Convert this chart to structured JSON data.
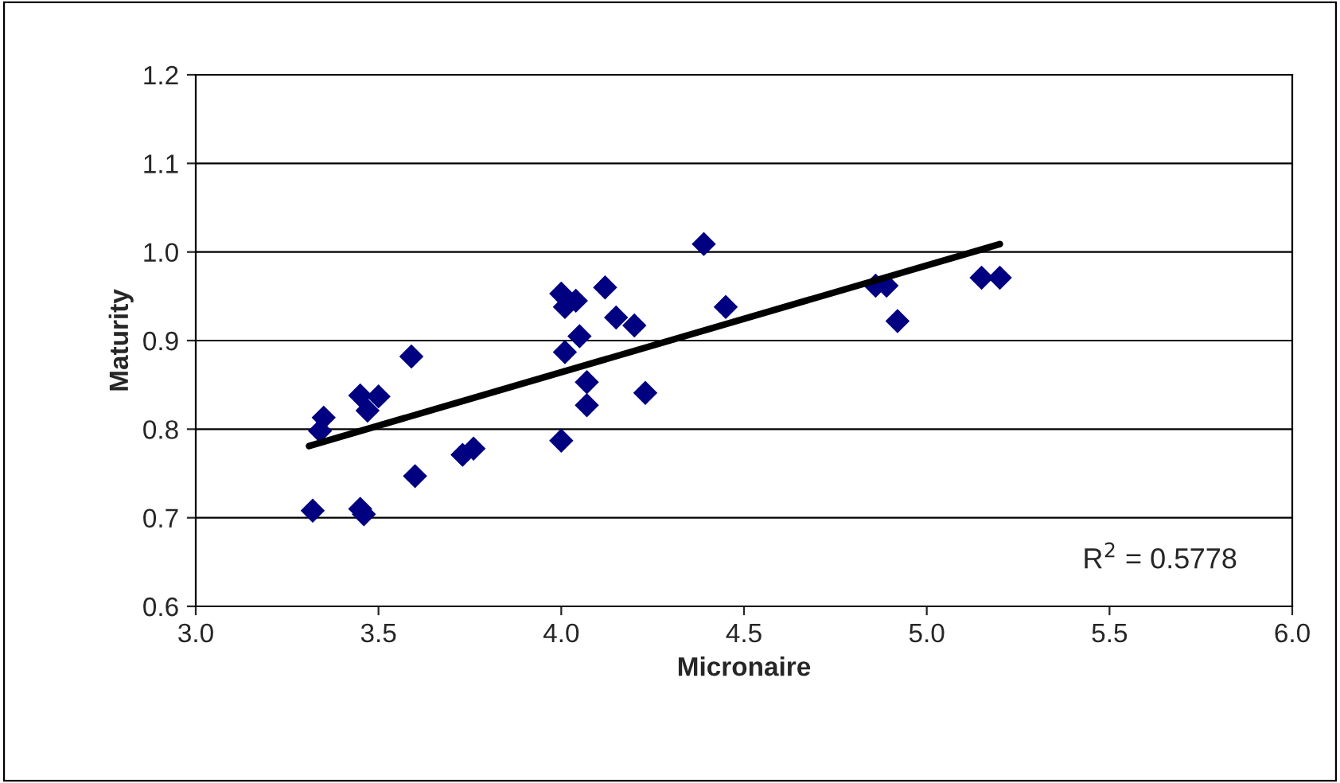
{
  "chart_data": {
    "type": "scatter",
    "xlabel": "Micronaire",
    "ylabel": "Maturity",
    "xlim": [
      3.0,
      6.0
    ],
    "xticks": [
      {
        "value": 3.0,
        "label": "3.0"
      },
      {
        "value": 3.5,
        "label": "3.5"
      },
      {
        "value": 4.0,
        "label": "4.0"
      },
      {
        "value": 4.5,
        "label": "4.5"
      },
      {
        "value": 5.0,
        "label": "5.0"
      },
      {
        "value": 5.5,
        "label": "5.5"
      },
      {
        "value": 6.0,
        "label": "6.0"
      }
    ],
    "ylim": [
      0.6,
      1.2
    ],
    "yticks": [
      {
        "value": 0.6,
        "label": "0.6"
      },
      {
        "value": 0.7,
        "label": "0.7"
      },
      {
        "value": 0.8,
        "label": "0.8"
      },
      {
        "value": 0.9,
        "label": "0.9"
      },
      {
        "value": 1.0,
        "label": "1.0"
      },
      {
        "value": 1.1,
        "label": "1.1"
      },
      {
        "value": 1.2,
        "label": "1.2"
      }
    ],
    "grid": "y",
    "marker": "diamond",
    "legend": false,
    "series": [
      {
        "color": "#000080",
        "x": [
          3.32,
          3.45,
          3.46,
          3.34,
          3.35,
          3.45,
          3.5,
          3.47,
          3.59,
          3.6,
          3.73,
          3.76,
          4.0,
          4.07,
          4.07,
          4.23,
          4.39,
          4.0,
          4.04,
          4.01,
          4.12,
          4.15,
          4.2,
          4.45,
          4.05,
          4.01,
          4.86,
          4.89,
          4.92,
          5.15,
          5.2
        ],
        "values": [
          0.708,
          0.71,
          0.704,
          0.798,
          0.813,
          0.838,
          0.837,
          0.821,
          0.882,
          0.747,
          0.771,
          0.778,
          0.787,
          0.853,
          0.827,
          0.841,
          1.009,
          0.953,
          0.945,
          0.938,
          0.96,
          0.926,
          0.917,
          0.938,
          0.905,
          0.887,
          0.962,
          0.962,
          0.922,
          0.971,
          0.971
        ]
      },
      {
        "type": "line",
        "color": "#000000",
        "marker": "none",
        "x": [
          3.31,
          5.2
        ],
        "values": [
          0.781,
          1.009
        ]
      }
    ],
    "annotations": [
      "R$^{2}$ = 0.5778"
    ]
  }
}
